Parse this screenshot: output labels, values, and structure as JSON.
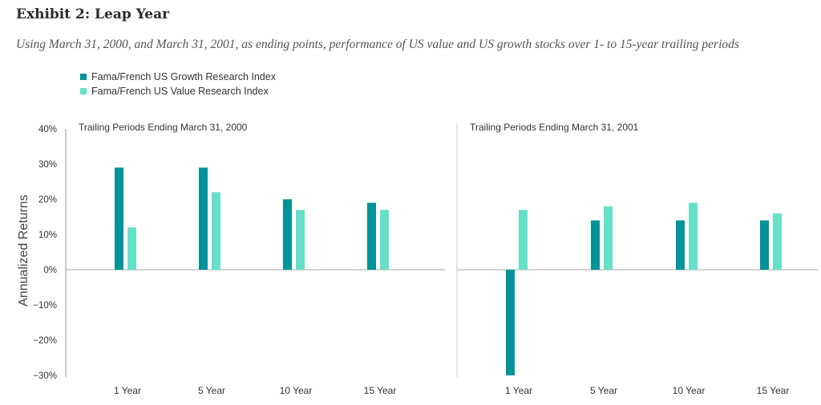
{
  "title": "Exhibit 2: Leap Year",
  "subtitle": "Using March 31, 2000, and March 31, 2001, as ending points, performance of US value and US growth stocks over 1- to 15-year trailing periods",
  "colors": {
    "growth": "#00939a",
    "value": "#66dfc8",
    "axis": "#9a9a9a",
    "divider": "#c8c8c8"
  },
  "chart_data": {
    "type": "bar",
    "ylabel": "Annualized Returns",
    "ylim": [
      -30,
      40
    ],
    "yticks": [
      "40%",
      "30%",
      "20%",
      "10%",
      "0%",
      "−10%",
      "−20%",
      "−30%"
    ],
    "ytick_values": [
      40,
      30,
      20,
      10,
      0,
      -10,
      -20,
      -30
    ],
    "legend": [
      "Fama/French US Growth Research Index",
      "Fama/French US Value Research Index"
    ],
    "panels": [
      {
        "title": "Trailing Periods Ending March 31, 2000",
        "categories": [
          "1 Year",
          "5 Year",
          "10 Year",
          "15 Year"
        ],
        "series": [
          {
            "name": "Fama/French US Growth Research Index",
            "values": [
              29,
              29,
              20,
              19
            ]
          },
          {
            "name": "Fama/French US Value Research Index",
            "values": [
              12,
              22,
              17,
              17
            ]
          }
        ]
      },
      {
        "title": "Trailing Periods Ending March 31, 2001",
        "categories": [
          "1 Year",
          "5 Year",
          "10 Year",
          "15 Year"
        ],
        "series": [
          {
            "name": "Fama/French US Growth Research Index",
            "values": [
              -30,
              14,
              14,
              14
            ]
          },
          {
            "name": "Fama/French US Value Research Index",
            "values": [
              17,
              18,
              19,
              16
            ]
          }
        ]
      }
    ]
  }
}
